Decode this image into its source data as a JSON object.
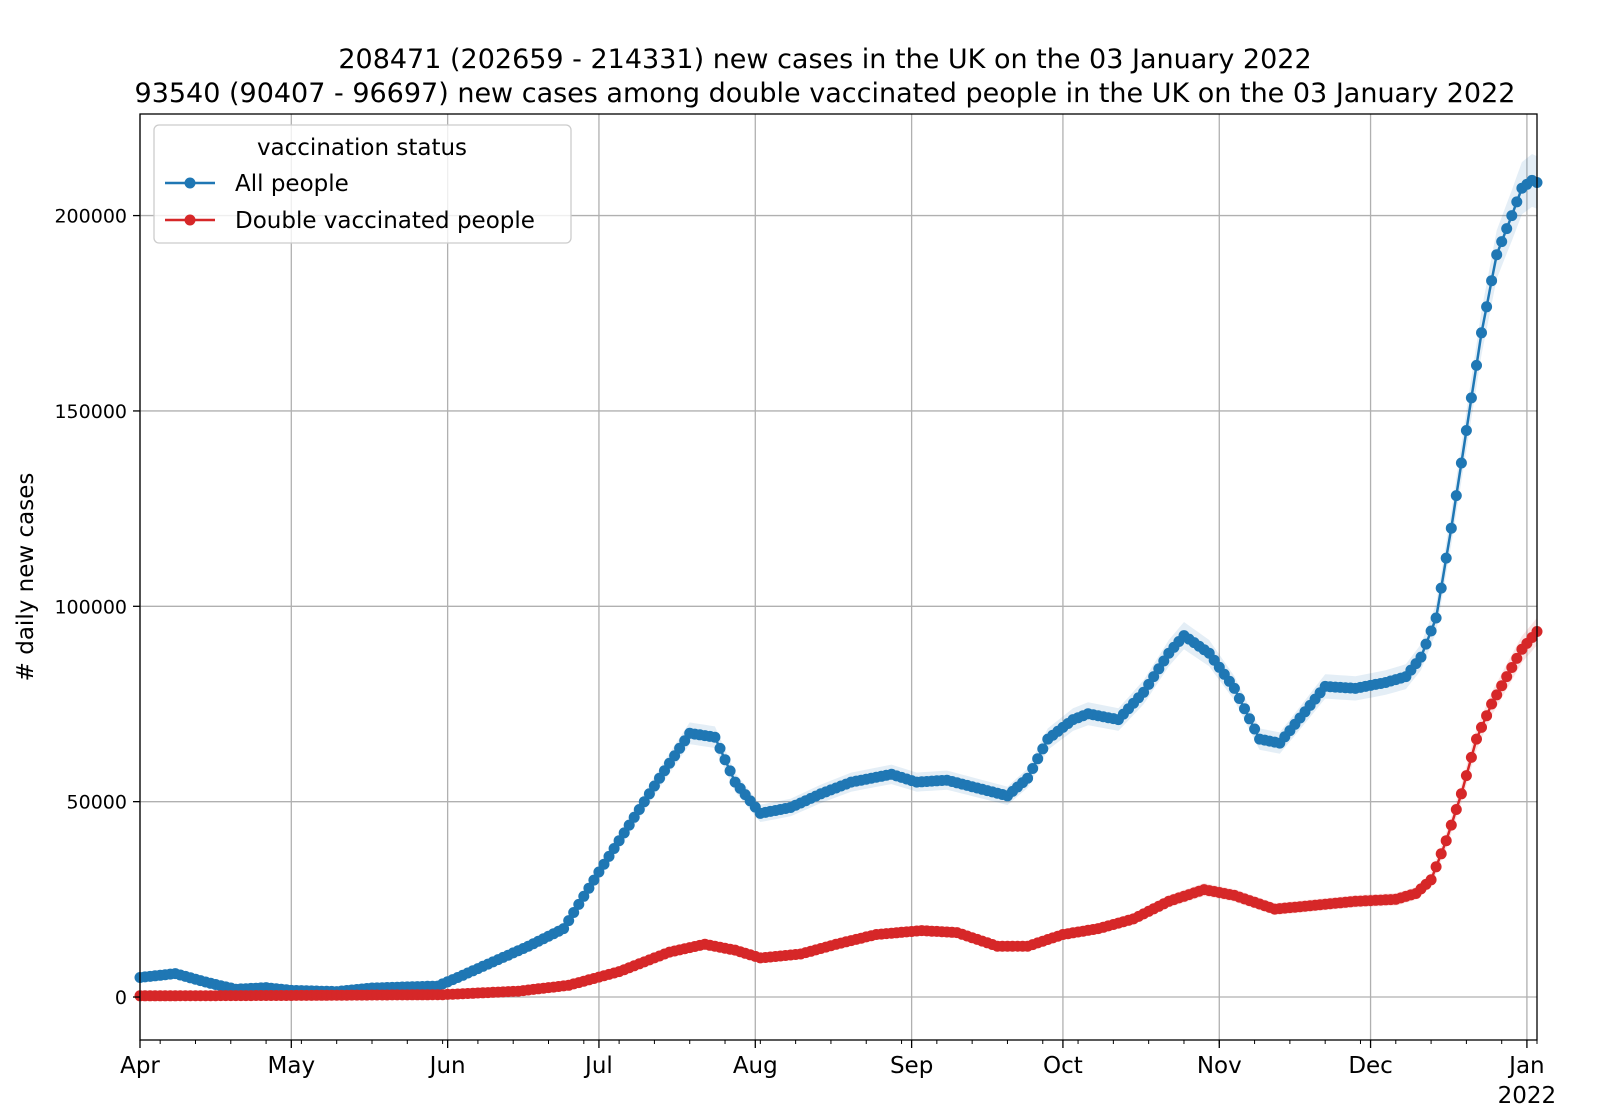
{
  "chart_data": {
    "type": "line",
    "title": "208471 (202659 - 214331) new cases in the UK on the 03 January 2022",
    "subtitle": "93540 (90407 - 96697) new cases among double vaccinated people in the UK on the 03 January 2022",
    "xlabel": "",
    "ylabel": "# daily new cases",
    "xlim": [
      "2021-04-01",
      "2022-01-03"
    ],
    "ylim": [
      -11000,
      226000
    ],
    "yticks": [
      0,
      50000,
      100000,
      150000,
      200000
    ],
    "ytick_labels": [
      "0",
      "50000",
      "100000",
      "150000",
      "200000"
    ],
    "xticks": [
      "2021-04-01",
      "2021-05-01",
      "2021-06-01",
      "2021-07-01",
      "2021-08-01",
      "2021-09-01",
      "2021-10-01",
      "2021-11-01",
      "2021-12-01",
      "2022-01-01"
    ],
    "xtick_labels": [
      "Apr",
      "May",
      "Jun",
      "Jul",
      "Aug",
      "Sep",
      "Oct",
      "Nov",
      "Dec",
      "Jan"
    ],
    "xtick_year_label": "2022",
    "grid": true,
    "legend": {
      "title": "vaccination status",
      "placement": "top-left"
    },
    "series": [
      {
        "name": "All people",
        "color": "#1f77b4",
        "marker": "circle",
        "band": true,
        "points": [
          [
            "2021-04-01",
            5000
          ],
          [
            "2021-04-08",
            6000
          ],
          [
            "2021-04-15",
            3500
          ],
          [
            "2021-04-20",
            2000
          ],
          [
            "2021-04-26",
            2400
          ],
          [
            "2021-05-01",
            1700
          ],
          [
            "2021-05-10",
            1400
          ],
          [
            "2021-05-17",
            2300
          ],
          [
            "2021-05-24",
            2600
          ],
          [
            "2021-05-30",
            2800
          ],
          [
            "2021-06-03",
            5000
          ],
          [
            "2021-06-10",
            9000
          ],
          [
            "2021-06-17",
            13000
          ],
          [
            "2021-06-24",
            17500
          ],
          [
            "2021-07-01",
            32000
          ],
          [
            "2021-07-07",
            44000
          ],
          [
            "2021-07-13",
            56000
          ],
          [
            "2021-07-19",
            67500
          ],
          [
            "2021-07-24",
            66500
          ],
          [
            "2021-07-28",
            55000
          ],
          [
            "2021-08-02",
            47000
          ],
          [
            "2021-08-08",
            48500
          ],
          [
            "2021-08-14",
            52000
          ],
          [
            "2021-08-20",
            55000
          ],
          [
            "2021-08-28",
            57000
          ],
          [
            "2021-09-02",
            55000
          ],
          [
            "2021-09-08",
            55500
          ],
          [
            "2021-09-14",
            53500
          ],
          [
            "2021-09-20",
            51500
          ],
          [
            "2021-09-24",
            56000
          ],
          [
            "2021-09-28",
            66000
          ],
          [
            "2021-10-03",
            71000
          ],
          [
            "2021-10-06",
            72500
          ],
          [
            "2021-10-12",
            71000
          ],
          [
            "2021-10-17",
            78000
          ],
          [
            "2021-10-22",
            88000
          ],
          [
            "2021-10-25",
            92500
          ],
          [
            "2021-10-30",
            88000
          ],
          [
            "2021-11-04",
            79000
          ],
          [
            "2021-11-09",
            66000
          ],
          [
            "2021-11-13",
            65000
          ],
          [
            "2021-11-18",
            73000
          ],
          [
            "2021-11-22",
            79500
          ],
          [
            "2021-11-28",
            79000
          ],
          [
            "2021-12-04",
            80500
          ],
          [
            "2021-12-08",
            82000
          ],
          [
            "2021-12-11",
            87000
          ],
          [
            "2021-12-14",
            97000
          ],
          [
            "2021-12-17",
            120000
          ],
          [
            "2021-12-20",
            145000
          ],
          [
            "2021-12-23",
            170000
          ],
          [
            "2021-12-26",
            190000
          ],
          [
            "2021-12-29",
            200000
          ],
          [
            "2021-12-31",
            207000
          ],
          [
            "2022-01-02",
            209000
          ],
          [
            "2022-01-03",
            208471
          ]
        ]
      },
      {
        "name": "Double vaccinated people",
        "color": "#d62728",
        "marker": "circle",
        "band": true,
        "points": [
          [
            "2021-04-01",
            300
          ],
          [
            "2021-05-01",
            400
          ],
          [
            "2021-05-31",
            600
          ],
          [
            "2021-06-15",
            1500
          ],
          [
            "2021-06-25",
            3000
          ],
          [
            "2021-07-05",
            6500
          ],
          [
            "2021-07-15",
            11500
          ],
          [
            "2021-07-22",
            13500
          ],
          [
            "2021-07-28",
            12000
          ],
          [
            "2021-08-02",
            10000
          ],
          [
            "2021-08-10",
            11000
          ],
          [
            "2021-08-17",
            13500
          ],
          [
            "2021-08-25",
            16000
          ],
          [
            "2021-09-03",
            17000
          ],
          [
            "2021-09-10",
            16500
          ],
          [
            "2021-09-18",
            13000
          ],
          [
            "2021-09-24",
            13000
          ],
          [
            "2021-10-01",
            16000
          ],
          [
            "2021-10-08",
            17500
          ],
          [
            "2021-10-15",
            20000
          ],
          [
            "2021-10-22",
            24500
          ],
          [
            "2021-10-29",
            27500
          ],
          [
            "2021-11-04",
            26000
          ],
          [
            "2021-11-12",
            22500
          ],
          [
            "2021-11-20",
            23500
          ],
          [
            "2021-11-28",
            24500
          ],
          [
            "2021-12-06",
            25000
          ],
          [
            "2021-12-10",
            26500
          ],
          [
            "2021-12-13",
            30000
          ],
          [
            "2021-12-16",
            40000
          ],
          [
            "2021-12-19",
            52000
          ],
          [
            "2021-12-22",
            66000
          ],
          [
            "2021-12-25",
            75000
          ],
          [
            "2021-12-28",
            82000
          ],
          [
            "2021-12-31",
            89000
          ],
          [
            "2022-01-03",
            93540
          ]
        ]
      }
    ]
  }
}
